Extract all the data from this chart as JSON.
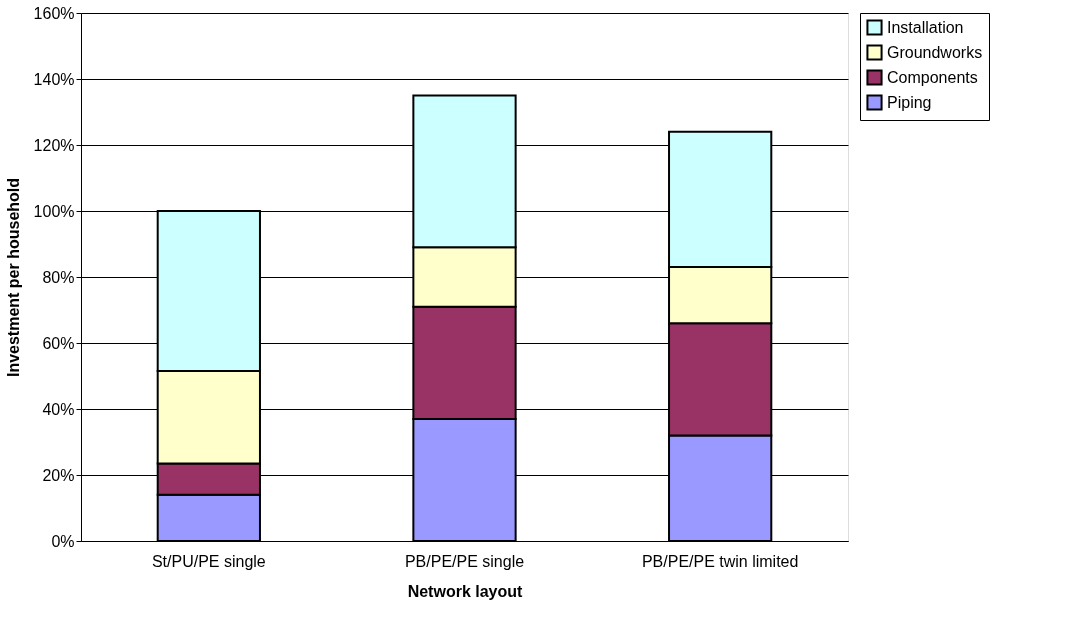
{
  "chart_data": {
    "type": "bar",
    "stacked": true,
    "xlabel": "Network layout",
    "ylabel": "Investment per household",
    "categories": [
      "St/PU/PE single",
      "PB/PE/PE single",
      "PB/PE/PE twin limited"
    ],
    "series": [
      {
        "name": "Piping",
        "color": "#9999ff",
        "values": [
          14,
          37,
          32
        ]
      },
      {
        "name": "Components",
        "color": "#993366",
        "values": [
          9.5,
          34,
          34
        ]
      },
      {
        "name": "Groundworks",
        "color": "#ffffcc",
        "values": [
          28,
          18,
          17
        ]
      },
      {
        "name": "Installation",
        "color": "#ccffff",
        "values": [
          48.5,
          46,
          41
        ]
      }
    ],
    "ylim": [
      0,
      160
    ],
    "yticks": [
      {
        "value": 0,
        "label": "0%"
      },
      {
        "value": 20,
        "label": "20%"
      },
      {
        "value": 40,
        "label": "40%"
      },
      {
        "value": 60,
        "label": "60%"
      },
      {
        "value": 80,
        "label": "80%"
      },
      {
        "value": 100,
        "label": "100%"
      },
      {
        "value": 120,
        "label": "120%"
      },
      {
        "value": 140,
        "label": "140%"
      },
      {
        "value": 160,
        "label": "160%"
      }
    ],
    "grid": "y",
    "legend": "right"
  }
}
